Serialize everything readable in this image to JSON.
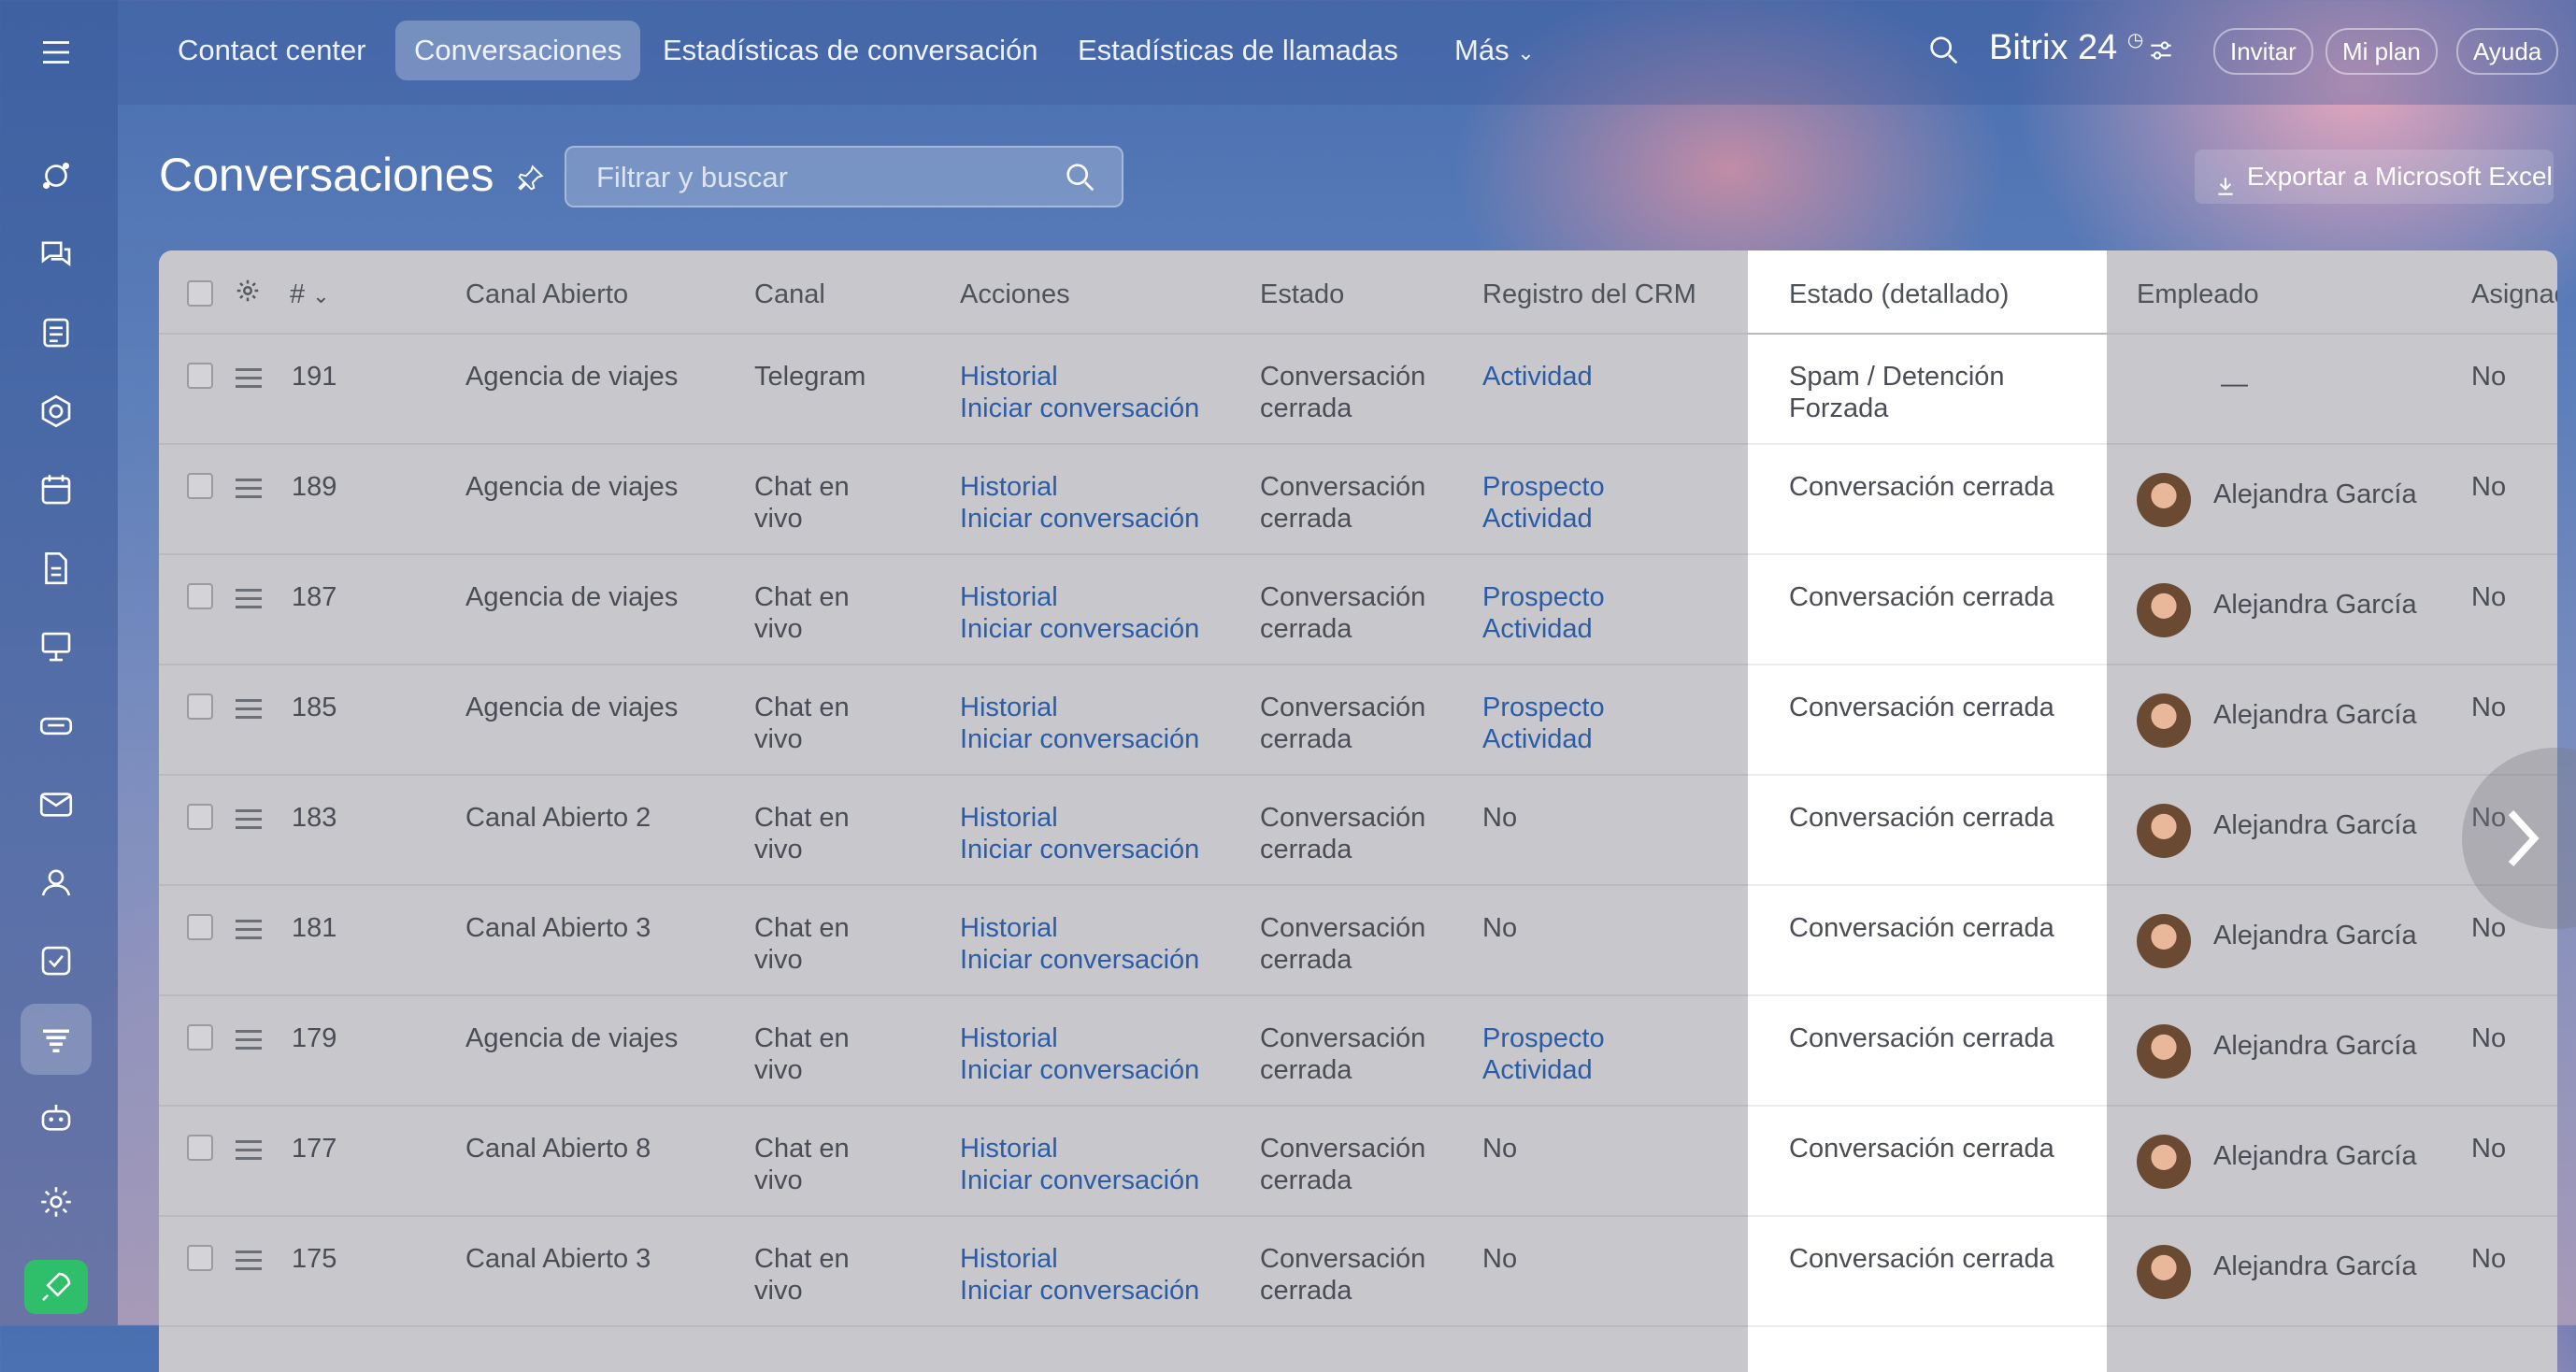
{
  "topnav": {
    "tabs": [
      "Contact center",
      "Conversaciones",
      "Estadísticas de conversación",
      "Estadísticas de llamadas"
    ],
    "more_label": "Más",
    "brand_name": "Bitrix",
    "brand_number": "24",
    "invite_label": "Invitar",
    "plan_label": "Mi plan",
    "help_label": "Ayuda"
  },
  "page": {
    "title": "Conversaciones",
    "search_placeholder": "Filtrar y buscar",
    "export_label": "Exportar a Microsoft Excel"
  },
  "sidebar": {
    "icons": [
      "menu-icon",
      "flows-icon",
      "chats-icon",
      "feed-icon",
      "hexagon-icon",
      "calendar-icon",
      "docs-icon",
      "presentation-icon",
      "crm-icon",
      "mail-icon",
      "contacts-icon",
      "tasks-icon",
      "contact-center-icon",
      "robot-icon",
      "settings-icon",
      "rocket-icon"
    ],
    "active": "contact-center-icon"
  },
  "table": {
    "columns": [
      "#",
      "Canal Abierto",
      "Canal",
      "Acciones",
      "Estado",
      "Registro del CRM",
      "Estado (detallado)",
      "Empleado",
      "Asignad"
    ],
    "rows": [
      {
        "id": "191",
        "open_channel": "Agencia de viajes",
        "channel": [
          "Telegram"
        ],
        "actions": [
          "Historial",
          "Iniciar conversación"
        ],
        "status": [
          "Conversación",
          "cerrada"
        ],
        "crm": [
          "Actividad"
        ],
        "crm_is_link": true,
        "detail": [
          "Spam / Detención",
          "Forzada"
        ],
        "employee": "—",
        "has_avatar": false,
        "assigned": "No"
      },
      {
        "id": "189",
        "open_channel": "Agencia de viajes",
        "channel": [
          "Chat en",
          "vivo"
        ],
        "actions": [
          "Historial",
          "Iniciar conversación"
        ],
        "status": [
          "Conversación",
          "cerrada"
        ],
        "crm": [
          "Prospecto",
          "Actividad"
        ],
        "crm_is_link": true,
        "detail": [
          "Conversación cerrada"
        ],
        "employee": "Alejandra García",
        "has_avatar": true,
        "assigned": "No"
      },
      {
        "id": "187",
        "open_channel": "Agencia de viajes",
        "channel": [
          "Chat en",
          "vivo"
        ],
        "actions": [
          "Historial",
          "Iniciar conversación"
        ],
        "status": [
          "Conversación",
          "cerrada"
        ],
        "crm": [
          "Prospecto",
          "Actividad"
        ],
        "crm_is_link": true,
        "detail": [
          "Conversación cerrada"
        ],
        "employee": "Alejandra García",
        "has_avatar": true,
        "assigned": "No"
      },
      {
        "id": "185",
        "open_channel": "Agencia de viajes",
        "channel": [
          "Chat en",
          "vivo"
        ],
        "actions": [
          "Historial",
          "Iniciar conversación"
        ],
        "status": [
          "Conversación",
          "cerrada"
        ],
        "crm": [
          "Prospecto",
          "Actividad"
        ],
        "crm_is_link": true,
        "detail": [
          "Conversación cerrada"
        ],
        "employee": "Alejandra García",
        "has_avatar": true,
        "assigned": "No"
      },
      {
        "id": "183",
        "open_channel": "Canal Abierto 2",
        "channel": [
          "Chat en",
          "vivo"
        ],
        "actions": [
          "Historial",
          "Iniciar conversación"
        ],
        "status": [
          "Conversación",
          "cerrada"
        ],
        "crm": [
          "No"
        ],
        "crm_is_link": false,
        "detail": [
          "Conversación cerrada"
        ],
        "employee": "Alejandra García",
        "has_avatar": true,
        "assigned": "No"
      },
      {
        "id": "181",
        "open_channel": "Canal Abierto 3",
        "channel": [
          "Chat en",
          "vivo"
        ],
        "actions": [
          "Historial",
          "Iniciar conversación"
        ],
        "status": [
          "Conversación",
          "cerrada"
        ],
        "crm": [
          "No"
        ],
        "crm_is_link": false,
        "detail": [
          "Conversación cerrada"
        ],
        "employee": "Alejandra García",
        "has_avatar": true,
        "assigned": "No"
      },
      {
        "id": "179",
        "open_channel": "Agencia de viajes",
        "channel": [
          "Chat en",
          "vivo"
        ],
        "actions": [
          "Historial",
          "Iniciar conversación"
        ],
        "status": [
          "Conversación",
          "cerrada"
        ],
        "crm": [
          "Prospecto",
          "Actividad"
        ],
        "crm_is_link": true,
        "detail": [
          "Conversación cerrada"
        ],
        "employee": "Alejandra García",
        "has_avatar": true,
        "assigned": "No"
      },
      {
        "id": "177",
        "open_channel": "Canal Abierto 8",
        "channel": [
          "Chat en",
          "vivo"
        ],
        "actions": [
          "Historial",
          "Iniciar conversación"
        ],
        "status": [
          "Conversación",
          "cerrada"
        ],
        "crm": [
          "No"
        ],
        "crm_is_link": false,
        "detail": [
          "Conversación cerrada"
        ],
        "employee": "Alejandra García",
        "has_avatar": true,
        "assigned": "No"
      },
      {
        "id": "175",
        "open_channel": "Canal Abierto 3",
        "channel": [
          "Chat en",
          "vivo"
        ],
        "actions": [
          "Historial",
          "Iniciar conversación"
        ],
        "status": [
          "Conversación",
          "cerrada"
        ],
        "crm": [
          "No"
        ],
        "crm_is_link": false,
        "detail": [
          "Conversación cerrada"
        ],
        "employee": "Alejandra García",
        "has_avatar": true,
        "assigned": "No"
      }
    ]
  }
}
